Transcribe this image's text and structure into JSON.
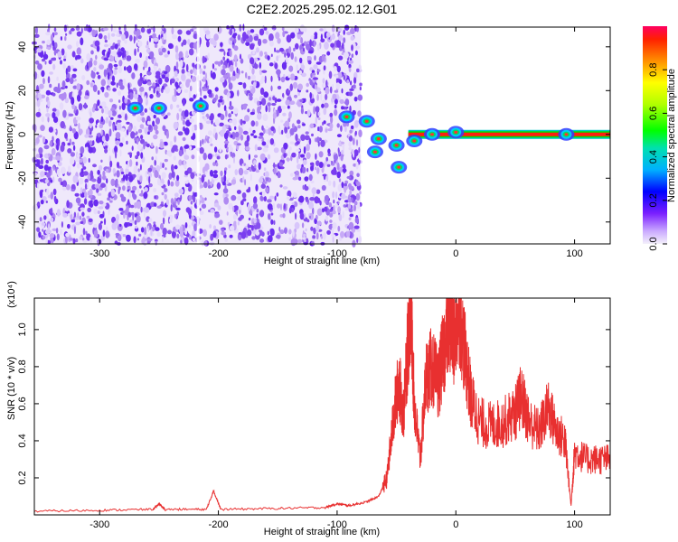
{
  "title": "C2E2.2025.295.02.12.G01",
  "chart_data": [
    {
      "type": "heatmap",
      "xlabel": "Height of straight line (km)",
      "ylabel": "Frequency (Hz)",
      "xlim": [
        -355,
        130
      ],
      "ylim": [
        -50,
        49
      ],
      "xticks": [
        -300,
        -200,
        -100,
        0,
        100
      ],
      "yticks": [
        -40,
        -20,
        0,
        20,
        40
      ],
      "noise_region_x": [
        -355,
        -80
      ],
      "features": [
        {
          "x": -270,
          "y": 12
        },
        {
          "x": -250,
          "y": 12
        },
        {
          "x": -215,
          "y": 13
        },
        {
          "x": -92,
          "y": 8
        },
        {
          "x": -75,
          "y": 6
        },
        {
          "x": -65,
          "y": -2
        },
        {
          "x": -68,
          "y": -8
        },
        {
          "x": -50,
          "y": -5
        },
        {
          "x": -48,
          "y": -15
        },
        {
          "x": -35,
          "y": -3
        },
        {
          "x": -20,
          "y": 0
        },
        {
          "x": 0,
          "y": 1
        },
        {
          "x": 93,
          "y": 0
        }
      ],
      "ridge": {
        "x_start": -40,
        "x_end": 130,
        "y": 0
      },
      "colorbar": {
        "label": "Normalized spectral amplitude",
        "range": [
          0,
          1
        ],
        "ticks": [
          0.0,
          0.2,
          0.4,
          0.6,
          0.8
        ]
      },
      "grid": false
    },
    {
      "type": "line",
      "xlabel": "Height of straight line (km)",
      "ylabel": "SNR (10 * v/v)",
      "y_multiplier": "(x10⁴)",
      "xlim": [
        -355,
        130
      ],
      "ylim": [
        0,
        1.17
      ],
      "xticks": [
        -300,
        -200,
        -100,
        0,
        100
      ],
      "yticks": [
        0.2,
        0.4,
        0.6,
        0.8,
        1.0
      ],
      "series": [
        {
          "color": "#e83030",
          "points": [
            [
              -355,
              0.02
            ],
            [
              -300,
              0.025
            ],
            [
              -255,
              0.03
            ],
            [
              -250,
              0.06
            ],
            [
              -245,
              0.03
            ],
            [
              -210,
              0.03
            ],
            [
              -204,
              0.13
            ],
            [
              -198,
              0.03
            ],
            [
              -150,
              0.035
            ],
            [
              -110,
              0.04
            ],
            [
              -100,
              0.06
            ],
            [
              -90,
              0.05
            ],
            [
              -75,
              0.07
            ],
            [
              -65,
              0.1
            ],
            [
              -58,
              0.2
            ],
            [
              -52,
              0.55
            ],
            [
              -48,
              0.72
            ],
            [
              -44,
              0.55
            ],
            [
              -40,
              0.95
            ],
            [
              -38,
              1.15
            ],
            [
              -35,
              0.6
            ],
            [
              -30,
              0.3
            ],
            [
              -25,
              0.75
            ],
            [
              -20,
              0.8
            ],
            [
              -15,
              0.7
            ],
            [
              -10,
              0.9
            ],
            [
              -5,
              1.05
            ],
            [
              -2,
              0.95
            ],
            [
              3,
              1.1
            ],
            [
              8,
              0.85
            ],
            [
              13,
              0.62
            ],
            [
              20,
              0.5
            ],
            [
              30,
              0.48
            ],
            [
              40,
              0.5
            ],
            [
              50,
              0.55
            ],
            [
              55,
              0.64
            ],
            [
              62,
              0.5
            ],
            [
              70,
              0.45
            ],
            [
              78,
              0.58
            ],
            [
              85,
              0.45
            ],
            [
              92,
              0.4
            ],
            [
              97,
              0.05
            ],
            [
              100,
              0.34
            ],
            [
              110,
              0.3
            ],
            [
              120,
              0.3
            ],
            [
              130,
              0.3
            ]
          ]
        }
      ],
      "grid": false
    }
  ]
}
